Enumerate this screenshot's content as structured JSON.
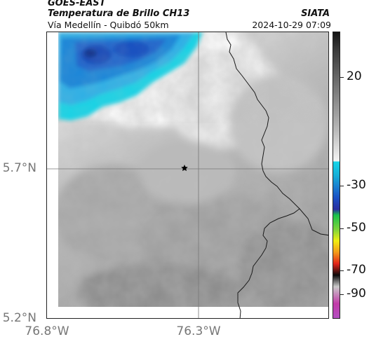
{
  "header": {
    "satellite": "GOES-EAST",
    "product": "Temperatura de Brillo CH13",
    "region": "Vía Medellín - Quibdó 50km",
    "organization": "SIATA",
    "timestamp": "2024-10-29 07:09"
  },
  "map": {
    "lat_ticks": [
      "5.7°N",
      "5.2°N"
    ],
    "lon_ticks": [
      "76.8°W",
      "76.3°W"
    ],
    "marker": "station-star",
    "features": [
      "department-boundary",
      "graticule-lines"
    ]
  },
  "colorbar": {
    "labels": [
      "20",
      "-30",
      "-50",
      "-70",
      "-90"
    ],
    "palette": {
      "warm_gray_top": "#141414",
      "light_gray": "#f4f4f4",
      "cyan": "#16d4e8",
      "blue": "#1a4fc4",
      "green": "#19c24a",
      "yellow": "#f0ee10",
      "red": "#e3241a",
      "black": "#0a0a0a",
      "magenta": "#c23aa8"
    }
  }
}
